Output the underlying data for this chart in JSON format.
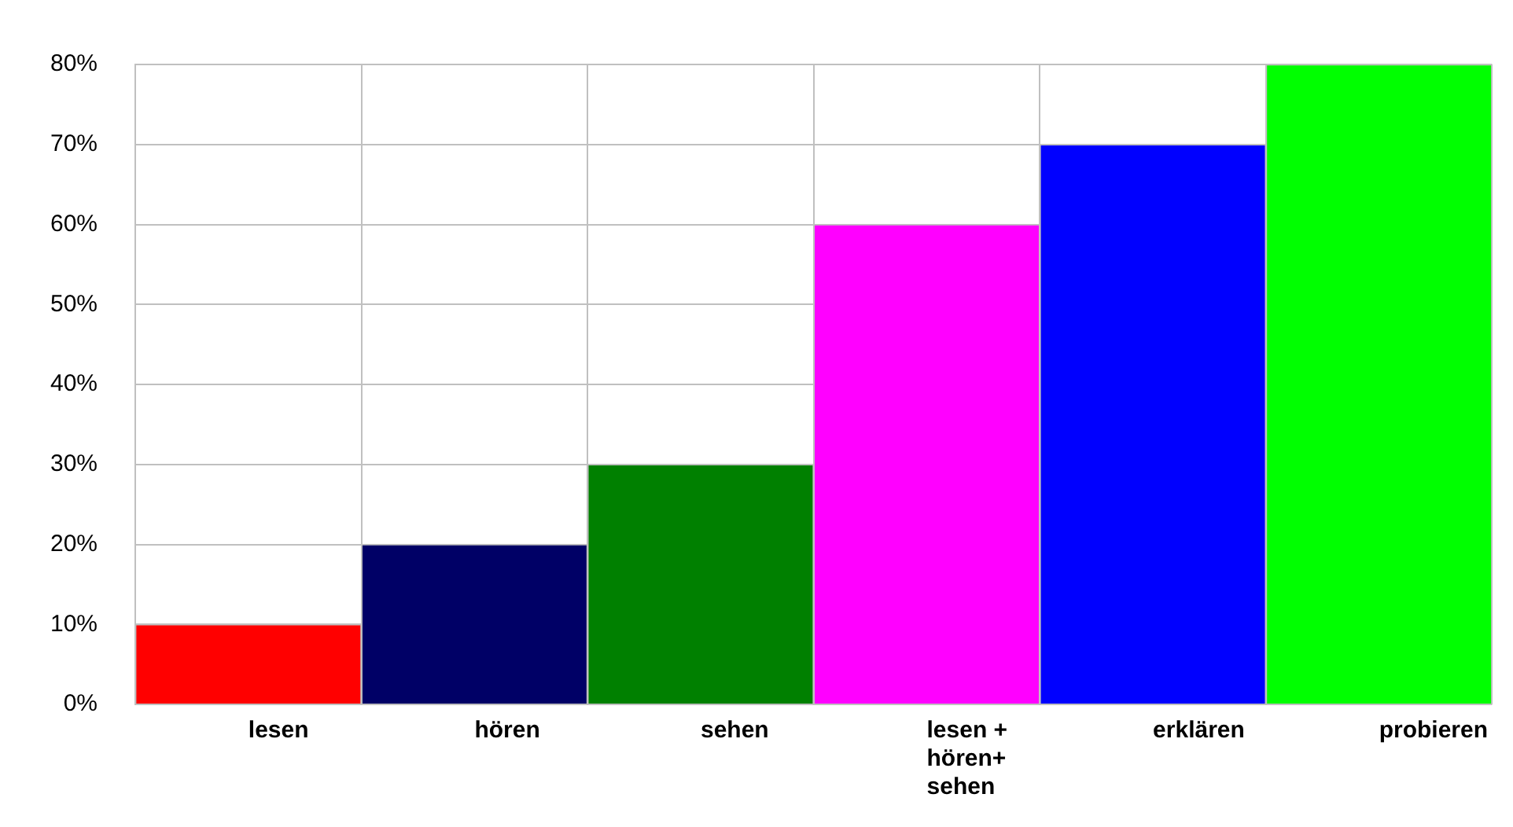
{
  "chart_data": {
    "type": "bar",
    "categories": [
      "lesen",
      "hören",
      "sehen",
      "lesen +\nhören+\nsehen",
      "erklären",
      "probieren"
    ],
    "values": [
      10,
      20,
      30,
      60,
      70,
      80
    ],
    "colors": [
      "#ff0000",
      "#000066",
      "#008000",
      "#ff00ff",
      "#0000ff",
      "#00ff00"
    ],
    "ylim": [
      0,
      80
    ],
    "yticks": [
      {
        "value": 0,
        "label": "0%"
      },
      {
        "value": 10,
        "label": "10%"
      },
      {
        "value": 20,
        "label": "20%"
      },
      {
        "value": 30,
        "label": "30%"
      },
      {
        "value": 40,
        "label": "40%"
      },
      {
        "value": 50,
        "label": "50%"
      },
      {
        "value": 60,
        "label": "60%"
      },
      {
        "value": 70,
        "label": "70%"
      },
      {
        "value": 80,
        "label": "80%"
      }
    ],
    "grid": true,
    "legend": false
  }
}
